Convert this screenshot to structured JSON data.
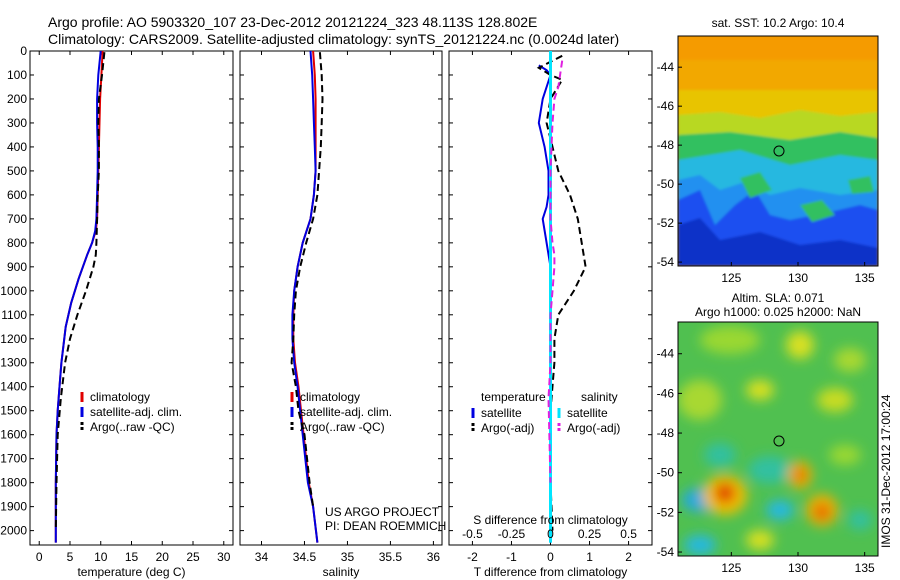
{
  "header": {
    "line1": "Argo profile: AO 5903320_107 23-Dec-2012 20121224_323 48.113S 128.802E",
    "line2": "Climatology: CARS2009. Satellite-adjusted climatology: synTS_20121224.nc (0.0024d later)"
  },
  "colors": {
    "climatology": "#e00000",
    "satellite": "#0000e0",
    "argo": "#000000",
    "salinity_satellite": "#00e5ff",
    "salinity_argo": "#e020e0"
  },
  "chart_data": [
    {
      "type": "line",
      "panel": "temperature",
      "xlabel": "temperature (deg C)",
      "ylabel": "",
      "xlim": [
        -1.5,
        31.5
      ],
      "ylim": [
        2060,
        0
      ],
      "xticks": [
        0,
        5,
        10,
        15,
        20,
        25,
        30
      ],
      "yticks": [
        0,
        100,
        200,
        300,
        400,
        500,
        600,
        700,
        800,
        900,
        1000,
        1100,
        1200,
        1300,
        1400,
        1500,
        1600,
        1700,
        1800,
        1900,
        2000
      ],
      "legend": [
        "climatology",
        "satellite-adj. clim.",
        "Argo(..raw -QC)"
      ],
      "legend_position": "lower-center",
      "series": [
        {
          "name": "climatology",
          "style": "solid",
          "color": "#e00000",
          "x": [
            10.3,
            10.1,
            9.9,
            9.8,
            9.7,
            9.6,
            9.5,
            9.4,
            9.2,
            8.6,
            7.8,
            6.4,
            5.2,
            4.3,
            3.6,
            3.3,
            3.0,
            2.8,
            2.7,
            2.7,
            2.7
          ],
          "y": [
            0,
            100,
            200,
            300,
            400,
            500,
            600,
            700,
            750,
            800,
            850,
            950,
            1050,
            1150,
            1300,
            1400,
            1500,
            1600,
            1800,
            1900,
            2050
          ]
        },
        {
          "name": "satellite-adj. clim.",
          "style": "solid",
          "color": "#0000e0",
          "x": [
            10.0,
            9.6,
            9.4,
            9.4,
            9.5,
            9.5,
            9.4,
            9.3,
            9.1,
            8.6,
            7.8,
            6.4,
            5.2,
            4.3,
            3.6,
            3.3,
            3.0,
            2.8,
            2.7,
            2.7,
            2.7
          ],
          "y": [
            0,
            100,
            200,
            300,
            400,
            500,
            600,
            700,
            750,
            800,
            850,
            950,
            1050,
            1150,
            1300,
            1400,
            1500,
            1600,
            1800,
            1900,
            2050
          ]
        },
        {
          "name": "Argo(..raw -QC)",
          "style": "dashed",
          "color": "#000000",
          "x": [
            10.6,
            10.2,
            9.7,
            9.6,
            9.7,
            9.7,
            9.5,
            9.4,
            9.3,
            9.2,
            8.8,
            7.6,
            6.2,
            5.0,
            4.2,
            3.5,
            3.0,
            2.8,
            2.7
          ],
          "y": [
            5,
            100,
            200,
            300,
            400,
            500,
            600,
            700,
            800,
            850,
            900,
            1000,
            1100,
            1200,
            1300,
            1450,
            1600,
            1800,
            2000
          ]
        }
      ]
    },
    {
      "type": "line",
      "panel": "salinity",
      "xlabel": "salinity",
      "ylabel": "",
      "xlim": [
        33.75,
        36.1
      ],
      "ylim": [
        2060,
        0
      ],
      "xticks": [
        34,
        34.5,
        35,
        35.5,
        36
      ],
      "legend": [
        "climatology",
        "satellite-adj. clim.",
        "Argo(..raw -QC)"
      ],
      "legend_position": "lower-center",
      "series": [
        {
          "name": "climatology",
          "style": "solid",
          "color": "#e00000",
          "x": [
            34.6,
            34.62,
            34.63,
            34.63,
            34.63,
            34.63,
            34.61,
            34.57,
            34.48,
            34.42,
            34.38,
            34.37,
            34.37,
            34.39,
            34.43,
            34.49,
            34.55,
            34.6,
            34.65
          ],
          "y": [
            0,
            100,
            200,
            300,
            400,
            500,
            600,
            700,
            800,
            900,
            1000,
            1100,
            1200,
            1300,
            1400,
            1600,
            1800,
            1900,
            2050
          ]
        },
        {
          "name": "satellite-adj. clim.",
          "style": "solid",
          "color": "#0000e0",
          "x": [
            34.57,
            34.59,
            34.6,
            34.61,
            34.62,
            34.63,
            34.61,
            34.57,
            34.48,
            34.42,
            34.38,
            34.36,
            34.36,
            34.38,
            34.42,
            34.48,
            34.54,
            34.6,
            34.65
          ],
          "y": [
            0,
            100,
            200,
            300,
            400,
            500,
            600,
            700,
            800,
            900,
            1000,
            1100,
            1200,
            1300,
            1400,
            1600,
            1800,
            1900,
            2050
          ]
        },
        {
          "name": "Argo(..raw -QC)",
          "style": "dashed",
          "color": "#000000",
          "x": [
            34.68,
            34.7,
            34.71,
            34.7,
            34.69,
            34.67,
            34.65,
            34.6,
            34.52,
            34.45,
            34.4,
            34.38,
            34.37,
            34.35,
            34.4,
            34.43,
            34.5,
            34.56,
            34.6
          ],
          "y": [
            5,
            100,
            200,
            300,
            400,
            500,
            600,
            700,
            800,
            900,
            1000,
            1100,
            1200,
            1300,
            1400,
            1500,
            1600,
            1800,
            1900
          ]
        }
      ],
      "annotation": [
        "US ARGO PROJECT",
        "PI: DEAN ROEMMICH"
      ]
    },
    {
      "type": "line",
      "panel": "difference",
      "xlabel": "T difference from climatology",
      "xlabel_top": "S difference from climatology",
      "ylabel": "",
      "xlim": [
        -2.6,
        2.6
      ],
      "ylim": [
        2060,
        0
      ],
      "xticks": [
        -2,
        -1,
        0,
        1,
        2
      ],
      "xticks_s": [
        -0.5,
        -0.25,
        0,
        0.25,
        0.5
      ],
      "legend_headers": [
        "temperature",
        "salinity"
      ],
      "legend": [
        "satellite",
        "Argo(-adj)",
        "satellite",
        "Argo(-adj)"
      ],
      "legend_position": "lower-center",
      "series": [
        {
          "name": "temperature satellite",
          "style": "solid",
          "color": "#0000e0",
          "x": [
            -0.3,
            -0.1,
            0.0,
            -0.2,
            -0.3,
            -0.15,
            -0.05,
            -0.05,
            -0.1,
            -0.2,
            -0.1,
            0.0,
            0.0,
            0.0,
            0.0
          ],
          "y": [
            60,
            80,
            100,
            200,
            300,
            400,
            500,
            600,
            650,
            700,
            800,
            900,
            1000,
            1500,
            2050
          ]
        },
        {
          "name": "temperature Argo(-adj)",
          "style": "dashed",
          "color": "#000000",
          "x": [
            0.3,
            -0.3,
            0.0,
            0.3,
            0.0,
            -0.1,
            0.05,
            0.2,
            0.5,
            0.7,
            0.8,
            0.9,
            0.6,
            0.2,
            0.1,
            0.1,
            0.0,
            0.0,
            0.05
          ],
          "y": [
            20,
            70,
            100,
            120,
            200,
            300,
            400,
            500,
            600,
            700,
            800,
            900,
            1000,
            1100,
            1200,
            1300,
            1500,
            1800,
            2000
          ]
        },
        {
          "name": "salinity satellite",
          "style": "solid",
          "color": "#00e5ff",
          "x": [
            0.0,
            0.0,
            0.0,
            0.0,
            0.0
          ],
          "y": [
            0,
            500,
            1000,
            1500,
            2050
          ]
        },
        {
          "name": "salinity Argo(-adj)",
          "style": "dashed",
          "color": "#e020e0",
          "x": [
            0.3,
            0.2,
            0.1,
            0.05,
            0.0,
            0.0,
            0.0,
            0.05,
            0.1,
            0.1,
            0.05,
            0.0,
            0.0,
            -0.05,
            0.0
          ],
          "y": [
            40,
            150,
            200,
            300,
            500,
            600,
            700,
            800,
            850,
            900,
            1000,
            1100,
            1300,
            1450,
            1800
          ]
        }
      ]
    },
    {
      "type": "heatmap",
      "panel": "sst",
      "title": "sat. SST: 10.2 Argo: 10.4",
      "xlim": [
        121,
        136
      ],
      "ylim": [
        -54.2,
        -42.4
      ],
      "xticks": [
        125,
        130,
        135
      ],
      "yticks": [
        -44,
        -46,
        -48,
        -50,
        -52,
        -54
      ],
      "marker": {
        "lon": 128.8,
        "lat": -48.1
      }
    },
    {
      "type": "heatmap",
      "panel": "sla",
      "title": "Altim. SLA: 0.071",
      "subtitle": "Argo h1000: 0.025 h2000: NaN",
      "xlim": [
        121,
        136
      ],
      "ylim": [
        -54.2,
        -42.4
      ],
      "xticks": [
        125,
        130,
        135
      ],
      "yticks": [
        -44,
        -46,
        -48,
        -50,
        -52,
        -54
      ],
      "marker": {
        "lon": 128.8,
        "lat": -48.1
      },
      "side_label": "IMOS 31-Dec-2012 17:00:24"
    }
  ]
}
